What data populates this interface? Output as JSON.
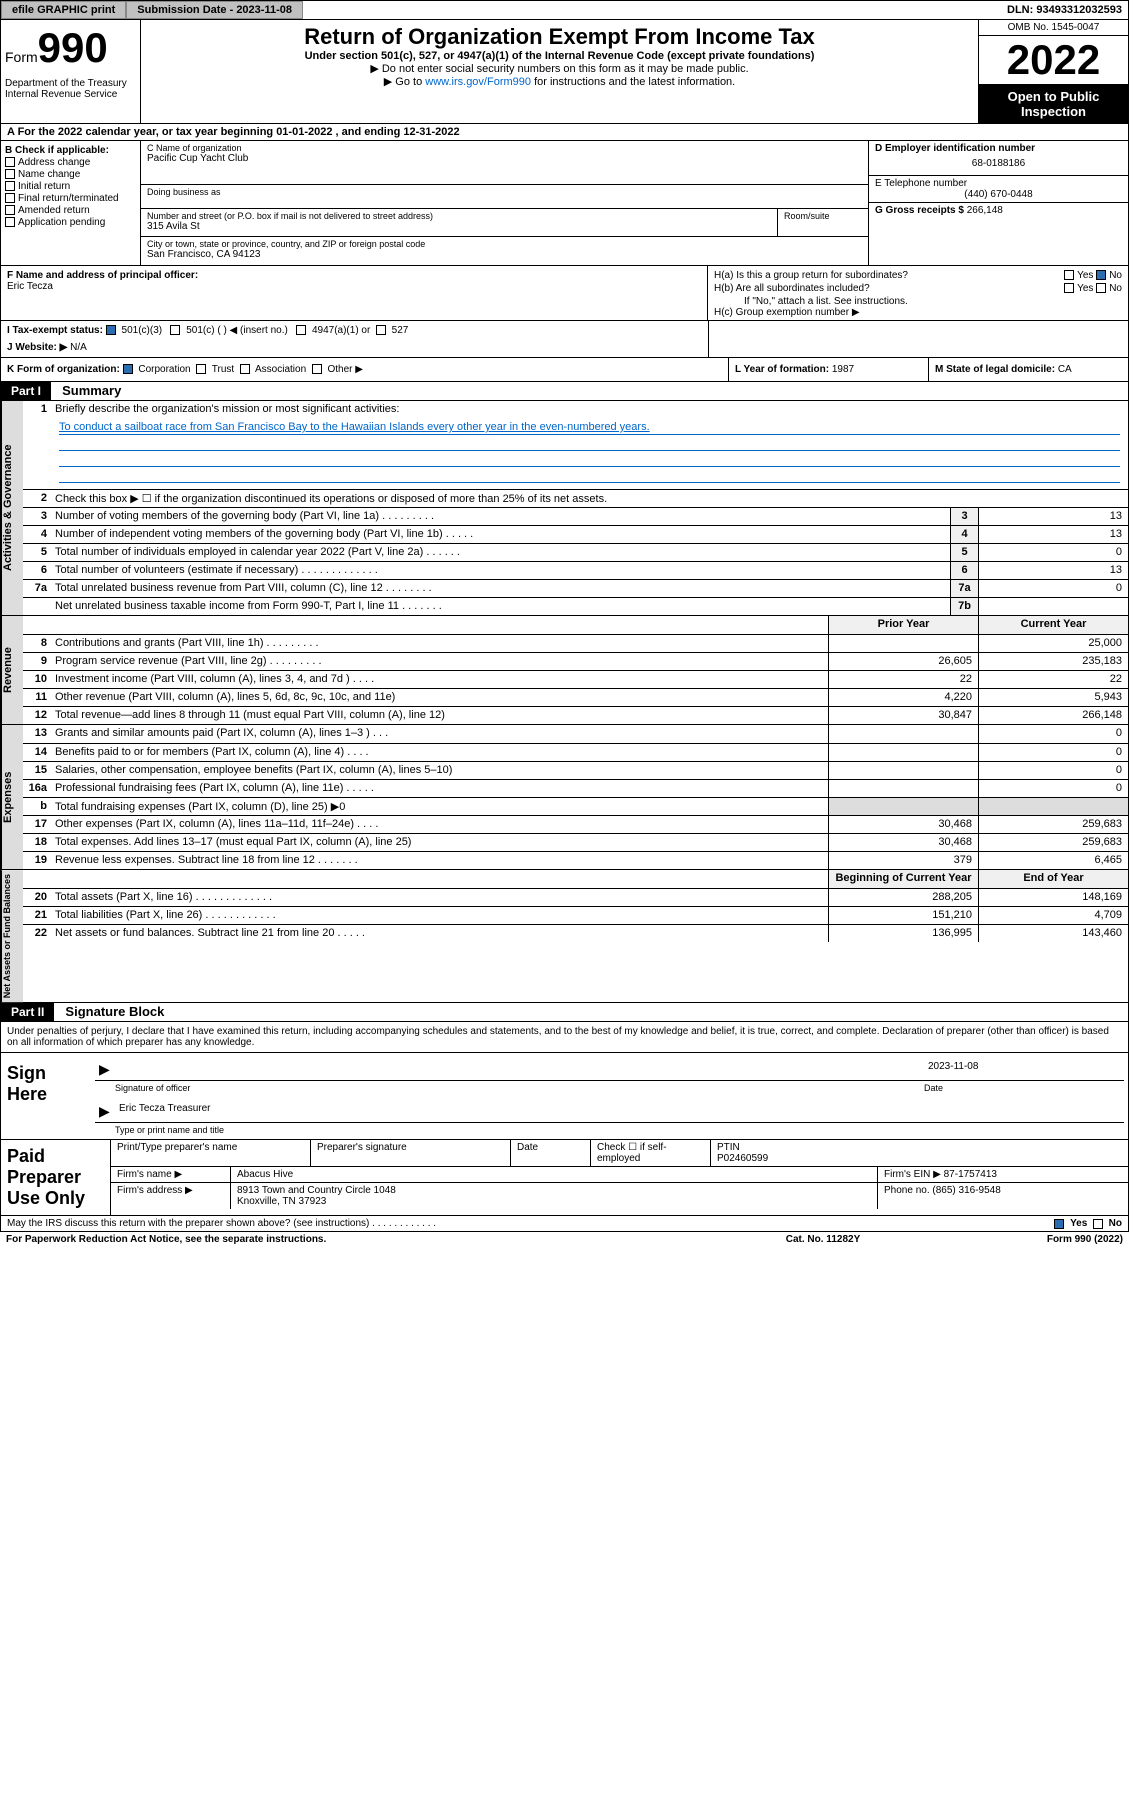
{
  "topbar": {
    "efile_label": "efile GRAPHIC print",
    "submission_label": "Submission Date - 2023-11-08",
    "dln": "DLN: 93493312032593"
  },
  "header": {
    "form_label": "Form",
    "form_number": "990",
    "title": "Return of Organization Exempt From Income Tax",
    "subtitle": "Under section 501(c), 527, or 4947(a)(1) of the Internal Revenue Code (except private foundations)",
    "note1": "▶ Do not enter social security numbers on this form as it may be made public.",
    "note2_prefix": "▶ Go to ",
    "note2_link": "www.irs.gov/Form990",
    "note2_suffix": " for instructions and the latest information.",
    "dept": "Department of the Treasury\nInternal Revenue Service",
    "omb": "OMB No. 1545-0047",
    "year": "2022",
    "open": "Open to Public Inspection"
  },
  "row_a": "A For the 2022 calendar year, or tax year beginning 01-01-2022    , and ending 12-31-2022",
  "col_b": {
    "header": "B Check if applicable:",
    "items": [
      "Address change",
      "Name change",
      "Initial return",
      "Final return/terminated",
      "Amended return",
      "Application pending"
    ]
  },
  "col_c": {
    "name_label": "C Name of organization",
    "name": "Pacific Cup Yacht Club",
    "dba_label": "Doing business as",
    "addr_label": "Number and street (or P.O. box if mail is not delivered to street address)",
    "room_label": "Room/suite",
    "addr": "315 Avila St",
    "city_label": "City or town, state or province, country, and ZIP or foreign postal code",
    "city": "San Francisco, CA  94123"
  },
  "col_d": {
    "ein_label": "D Employer identification number",
    "ein": "68-0188186",
    "phone_label": "E Telephone number",
    "phone": "(440) 670-0448",
    "gross_label": "G Gross receipts $",
    "gross": "266,148"
  },
  "row_f": {
    "label": "F Name and address of principal officer:",
    "name": "Eric Tecza"
  },
  "row_h": {
    "ha": "H(a)  Is this a group return for subordinates?",
    "ha_yes": "Yes",
    "ha_no": "No",
    "hb": "H(b)  Are all subordinates included?",
    "hb_yes": "Yes",
    "hb_no": "No",
    "hb_note": "If \"No,\" attach a list. See instructions.",
    "hc": "H(c)  Group exemption number ▶"
  },
  "row_i": {
    "label": "I    Tax-exempt status:",
    "opts": [
      "501(c)(3)",
      "501(c) (  ) ◀ (insert no.)",
      "4947(a)(1) or",
      "527"
    ]
  },
  "row_j": {
    "label": "J   Website: ▶",
    "val": "N/A"
  },
  "row_k": {
    "label": "K Form of organization:",
    "opts": [
      "Corporation",
      "Trust",
      "Association",
      "Other ▶"
    ]
  },
  "row_l": {
    "label": "L Year of formation:",
    "val": "1987"
  },
  "row_m": {
    "label": "M State of legal domicile:",
    "val": "CA"
  },
  "parts": {
    "p1": "Part I",
    "p1_title": "Summary",
    "p2": "Part II",
    "p2_title": "Signature Block"
  },
  "summary": {
    "q1_label": "Briefly describe the organization's mission or most significant activities:",
    "q1_text": "To conduct a sailboat race from San Francisco Bay to the Hawaiian Islands every other year in the even-numbered years.",
    "q2": "Check this box ▶ ☐  if the organization discontinued its operations or disposed of more than 25% of its net assets.",
    "rows_gov": [
      {
        "n": "3",
        "t": "Number of voting members of the governing body (Part VI, line 1a)  .    .    .    .    .    .    .    .    .",
        "box": "3",
        "v": "13"
      },
      {
        "n": "4",
        "t": "Number of independent voting members of the governing body (Part VI, line 1b)  .    .    .    .    .",
        "box": "4",
        "v": "13"
      },
      {
        "n": "5",
        "t": "Total number of individuals employed in calendar year 2022 (Part V, line 2a)  .    .    .    .    .    .",
        "box": "5",
        "v": "0"
      },
      {
        "n": "6",
        "t": "Total number of volunteers (estimate if necessary)  .    .    .    .    .    .    .    .    .    .    .    .    .",
        "box": "6",
        "v": "13"
      },
      {
        "n": "7a",
        "t": "Total unrelated business revenue from Part VIII, column (C), line 12  .    .    .    .    .    .    .    .",
        "box": "7a",
        "v": "0"
      },
      {
        "n": "",
        "t": "Net unrelated business taxable income from Form 990-T, Part I, line 11  .    .    .    .    .    .    .",
        "box": "7b",
        "v": ""
      }
    ],
    "prior_hdr": "Prior Year",
    "curr_hdr": "Current Year",
    "rows_rev": [
      {
        "n": "8",
        "t": "Contributions and grants (Part VIII, line 1h)  .    .    .    .    .    .    .    .    .",
        "p": "",
        "c": "25,000"
      },
      {
        "n": "9",
        "t": "Program service revenue (Part VIII, line 2g)  .    .    .    .    .    .    .    .    .",
        "p": "26,605",
        "c": "235,183"
      },
      {
        "n": "10",
        "t": "Investment income (Part VIII, column (A), lines 3, 4, and 7d )  .    .    .    .",
        "p": "22",
        "c": "22"
      },
      {
        "n": "11",
        "t": "Other revenue (Part VIII, column (A), lines 5, 6d, 8c, 9c, 10c, and 11e)",
        "p": "4,220",
        "c": "5,943"
      },
      {
        "n": "12",
        "t": "Total revenue—add lines 8 through 11 (must equal Part VIII, column (A), line 12)",
        "p": "30,847",
        "c": "266,148"
      }
    ],
    "rows_exp": [
      {
        "n": "13",
        "t": "Grants and similar amounts paid (Part IX, column (A), lines 1–3 )  .    .    .",
        "p": "",
        "c": "0"
      },
      {
        "n": "14",
        "t": "Benefits paid to or for members (Part IX, column (A), line 4)  .    .    .    .",
        "p": "",
        "c": "0"
      },
      {
        "n": "15",
        "t": "Salaries, other compensation, employee benefits (Part IX, column (A), lines 5–10)",
        "p": "",
        "c": "0"
      },
      {
        "n": "16a",
        "t": "Professional fundraising fees (Part IX, column (A), line 11e)  .    .    .    .    .",
        "p": "",
        "c": "0"
      },
      {
        "n": "b",
        "t": "Total fundraising expenses (Part IX, column (D), line 25) ▶0",
        "p": "—",
        "c": "—"
      },
      {
        "n": "17",
        "t": "Other expenses (Part IX, column (A), lines 11a–11d, 11f–24e)  .    .    .    .",
        "p": "30,468",
        "c": "259,683"
      },
      {
        "n": "18",
        "t": "Total expenses. Add lines 13–17 (must equal Part IX, column (A), line 25)",
        "p": "30,468",
        "c": "259,683"
      },
      {
        "n": "19",
        "t": "Revenue less expenses. Subtract line 18 from line 12  .    .    .    .    .    .    .",
        "p": "379",
        "c": "6,465"
      }
    ],
    "boy_hdr": "Beginning of Current Year",
    "eoy_hdr": "End of Year",
    "rows_net": [
      {
        "n": "20",
        "t": "Total assets (Part X, line 16)  .    .    .    .    .    .    .    .    .    .    .    .    .",
        "p": "288,205",
        "c": "148,169"
      },
      {
        "n": "21",
        "t": "Total liabilities (Part X, line 26)  .    .    .    .    .    .    .    .    .    .    .    .",
        "p": "151,210",
        "c": "4,709"
      },
      {
        "n": "22",
        "t": "Net assets or fund balances. Subtract line 21 from line 20  .    .    .    .    .",
        "p": "136,995",
        "c": "143,460"
      }
    ]
  },
  "side_labels": {
    "gov": "Activities & Governance",
    "rev": "Revenue",
    "exp": "Expenses",
    "net": "Net Assets or Fund Balances"
  },
  "sig": {
    "intro": "Under penalties of perjury, I declare that I have examined this return, including accompanying schedules and statements, and to the best of my knowledge and belief, it is true, correct, and complete. Declaration of preparer (other than officer) is based on all information of which preparer has any knowledge.",
    "sign_here": "Sign Here",
    "sig_officer": "Signature of officer",
    "date_label": "Date",
    "date": "2023-11-08",
    "name_title": "Eric Tecza Treasurer",
    "name_label": "Type or print name and title"
  },
  "paid": {
    "header": "Paid Preparer Use Only",
    "h1": "Print/Type preparer's name",
    "h2": "Preparer's signature",
    "h3": "Date",
    "h4_check": "Check ☐ if self-employed",
    "h5": "PTIN",
    "ptin": "P02460599",
    "firm_label": "Firm's name    ▶",
    "firm": "Abacus Hive",
    "ein_label": "Firm's EIN ▶",
    "ein": "87-1757413",
    "addr_label": "Firm's address ▶",
    "addr1": "8913 Town and Country Circle 1048",
    "addr2": "Knoxville, TN  37923",
    "phone_label": "Phone no.",
    "phone": "(865) 316-9548"
  },
  "footer": {
    "discuss": "May the IRS discuss this return with the preparer shown above? (see instructions)  .    .    .    .    .    .    .    .    .    .    .    .",
    "yes": "Yes",
    "no": "No",
    "pra": "For Paperwork Reduction Act Notice, see the separate instructions.",
    "cat": "Cat. No. 11282Y",
    "form": "Form 990 (2022)"
  }
}
